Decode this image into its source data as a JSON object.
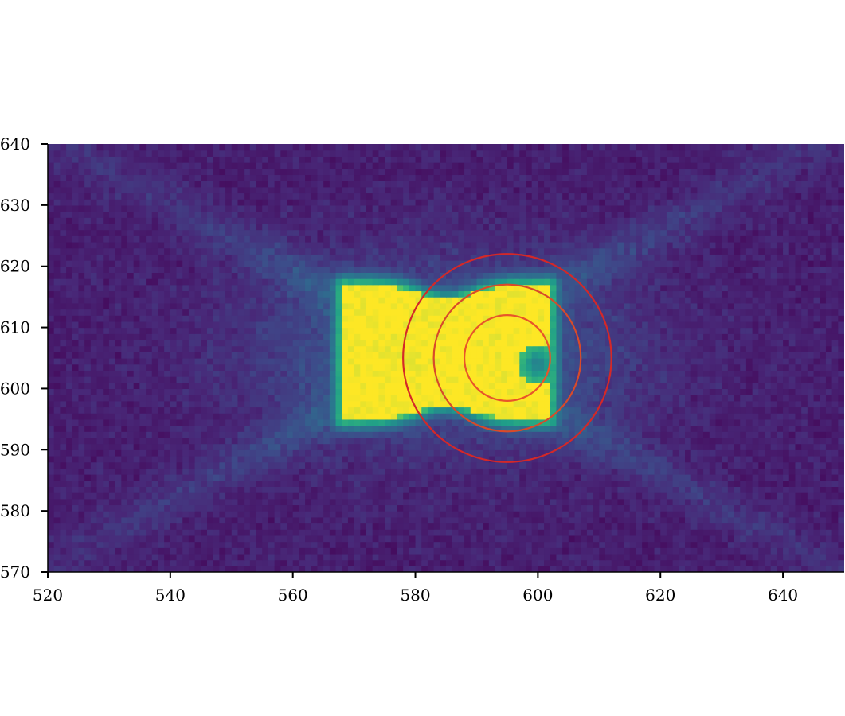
{
  "chart_data": {
    "type": "heatmap",
    "colormap": "viridis",
    "title": "",
    "xlabel": "",
    "ylabel": "",
    "xlim": [
      520,
      650
    ],
    "ylim": [
      570,
      640
    ],
    "xticks": [
      520,
      540,
      560,
      580,
      600,
      620,
      640
    ],
    "yticks": [
      570,
      580,
      590,
      600,
      610,
      620,
      630,
      640
    ],
    "grid": false,
    "image": {
      "description_of_structure": "bright saturated bow-tie core with diffuse X-shaped arms on dark background",
      "core_extent_x": [
        568,
        606
      ],
      "core_extent_y": [
        595,
        617
      ],
      "dark_spot_center": [
        600,
        604
      ]
    },
    "apertures": {
      "center": [
        595,
        605
      ],
      "radii": [
        7,
        12,
        17
      ],
      "colors": [
        "#e8552a",
        "#d84a2a",
        "#d42828"
      ]
    }
  }
}
